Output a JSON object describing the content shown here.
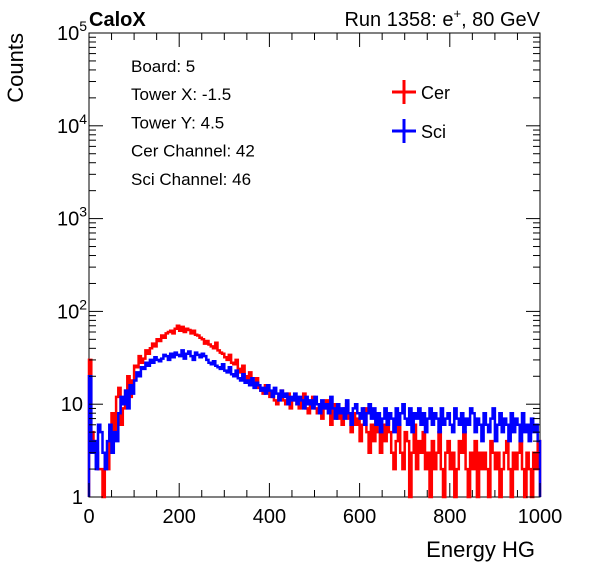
{
  "chart_data": {
    "type": "line",
    "title_left": "CaloX",
    "title_right_prefix": "Run 1358: e",
    "title_right_sup": "+",
    "title_right_suffix": ", 80 GeV",
    "xlabel": "Energy HG",
    "ylabel": "Counts",
    "xlim": [
      0,
      1000
    ],
    "ylim": [
      1,
      100000
    ],
    "ylog": true,
    "x_ticks": [
      0,
      200,
      400,
      600,
      800,
      1000
    ],
    "x_tick_labels": [
      "0",
      "200",
      "400",
      "600",
      "800",
      "1000"
    ],
    "y_tick_labels": [
      {
        "value": 1,
        "base": "1",
        "exp": ""
      },
      {
        "value": 10,
        "base": "10",
        "exp": ""
      },
      {
        "value": 100,
        "base": "10",
        "exp": "2"
      },
      {
        "value": 1000,
        "base": "10",
        "exp": "3"
      },
      {
        "value": 10000,
        "base": "10",
        "exp": "4"
      },
      {
        "value": 100000,
        "base": "10",
        "exp": "5"
      }
    ],
    "info_lines": [
      "Board: 5",
      "Tower X: -1.5",
      "Tower Y: 4.5",
      "Cer Channel: 42",
      "Sci Channel: 46"
    ],
    "legend_position": "top-right",
    "bin_width": 5,
    "series": [
      {
        "name": "Cer",
        "color": "#ff0000",
        "values": [
          30,
          5,
          4,
          3,
          2,
          2,
          1,
          3,
          2,
          5,
          8,
          5,
          12,
          15,
          6,
          9,
          14,
          20,
          12,
          18,
          26,
          25,
          33,
          28,
          31,
          38,
          35,
          40,
          45,
          42,
          50,
          48,
          55,
          52,
          58,
          60,
          62,
          58,
          65,
          70,
          62,
          68,
          60,
          65,
          63,
          58,
          62,
          56,
          55,
          52,
          50,
          45,
          48,
          44,
          42,
          40,
          46,
          38,
          36,
          35,
          32,
          30,
          34,
          28,
          27,
          30,
          24,
          22,
          26,
          20,
          18,
          22,
          17,
          16,
          19,
          15,
          14,
          13,
          16,
          14,
          12,
          13,
          11,
          10,
          12,
          14,
          11,
          10,
          13,
          9,
          11,
          12,
          10,
          9,
          11,
          13,
          9,
          8,
          10,
          12,
          9,
          8,
          10,
          7,
          9,
          11,
          8,
          6,
          9,
          10,
          7,
          8,
          6,
          9,
          10,
          7,
          5,
          8,
          6,
          7,
          4,
          6,
          9,
          5,
          3,
          6,
          4,
          7,
          5,
          3,
          6,
          4,
          8,
          5,
          3,
          2,
          4,
          6,
          3,
          2,
          5,
          4,
          1,
          3,
          6,
          2,
          4,
          3,
          5,
          2,
          3,
          1,
          4,
          2,
          3,
          5,
          2,
          1,
          3,
          4,
          2,
          3,
          1,
          2,
          4,
          3,
          5,
          2,
          1,
          3,
          2,
          4,
          1,
          3,
          2,
          3,
          2,
          1,
          4,
          3,
          2,
          3,
          1,
          2,
          3,
          4,
          2,
          1,
          3,
          2,
          3,
          4,
          2,
          1,
          3,
          2,
          1,
          3,
          2,
          4
        ]
      },
      {
        "name": "Sci",
        "color": "#0000ff",
        "values": [
          20,
          3,
          4,
          2,
          6,
          5,
          3,
          2,
          4,
          6,
          3,
          5,
          4,
          8,
          12,
          10,
          14,
          9,
          16,
          13,
          18,
          22,
          20,
          25,
          24,
          28,
          26,
          30,
          28,
          32,
          30,
          29,
          31,
          34,
          33,
          30,
          35,
          32,
          36,
          34,
          33,
          38,
          31,
          35,
          37,
          33,
          30,
          36,
          34,
          32,
          35,
          33,
          30,
          28,
          27,
          29,
          26,
          25,
          24,
          27,
          23,
          22,
          25,
          21,
          20,
          23,
          19,
          18,
          21,
          17,
          18,
          16,
          19,
          15,
          17,
          16,
          14,
          15,
          13,
          16,
          14,
          12,
          15,
          13,
          11,
          14,
          12,
          13,
          10,
          12,
          11,
          13,
          10,
          12,
          11,
          9,
          12,
          10,
          11,
          9,
          12,
          10,
          8,
          11,
          9,
          10,
          8,
          12,
          9,
          7,
          10,
          8,
          9,
          7,
          11,
          8,
          6,
          9,
          10,
          8,
          7,
          9,
          6,
          8,
          10,
          7,
          9,
          6,
          8,
          5,
          7,
          9,
          6,
          8,
          7,
          5,
          9,
          6,
          8,
          10,
          7,
          6,
          9,
          5,
          8,
          7,
          9,
          6,
          8,
          5,
          7,
          9,
          6,
          8,
          7,
          5,
          9,
          6,
          7,
          8,
          6,
          5,
          9,
          7,
          6,
          8,
          5,
          7,
          6,
          9,
          8,
          5,
          7,
          6,
          4,
          8,
          6,
          5,
          7,
          9,
          4,
          6,
          8,
          5,
          7,
          6,
          4,
          8,
          5,
          7,
          6,
          4,
          8,
          5,
          6,
          4,
          7,
          5,
          6,
          4
        ]
      }
    ]
  }
}
